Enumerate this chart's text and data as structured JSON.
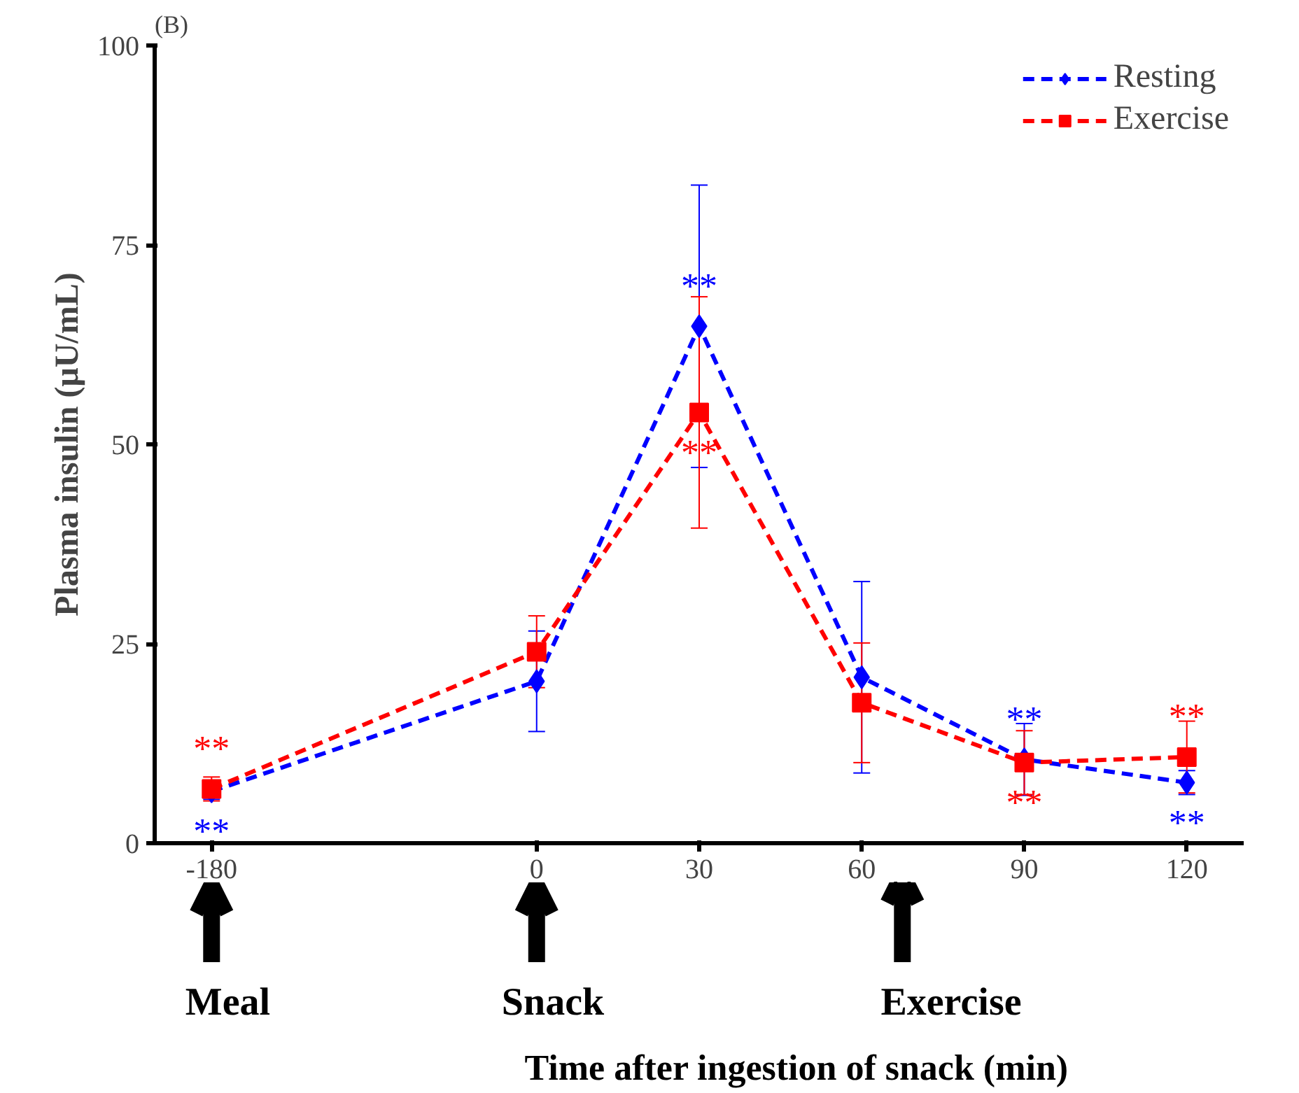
{
  "chart_data": {
    "type": "line",
    "title": "(B)",
    "xlabel": "Time after ingestion of snack (min)",
    "ylabel": "Plasma insulin (μU/mL)",
    "categories": [
      "-180",
      "0",
      "30",
      "60",
      "90",
      "120"
    ],
    "ylim": [
      0,
      100
    ],
    "yticks": [
      0,
      25,
      50,
      75,
      100
    ],
    "grid": false,
    "legend": "top right",
    "line_style": "dashed",
    "series": [
      {
        "name": "Resting",
        "color": "#0000ff",
        "marker": "diamond",
        "values": [
          6.5,
          20.3,
          64.8,
          20.8,
          10.5,
          7.6
        ],
        "errors": [
          1,
          6.3,
          17.7,
          12,
          4.5,
          1.5
        ],
        "value_labels": [
          "**",
          null,
          "**",
          null,
          "**",
          "**"
        ]
      },
      {
        "name": "Exercise",
        "color": "#ff0000",
        "marker": "square",
        "values": [
          6.8,
          24,
          54,
          17.6,
          10.1,
          10.8
        ],
        "errors": [
          1.5,
          4.5,
          14.5,
          7.5,
          4,
          4.5
        ],
        "value_labels": [
          "**",
          null,
          "**",
          null,
          "**",
          "**"
        ]
      }
    ],
    "annotations": [
      "Meal",
      "Snack",
      "Exercise"
    ]
  }
}
